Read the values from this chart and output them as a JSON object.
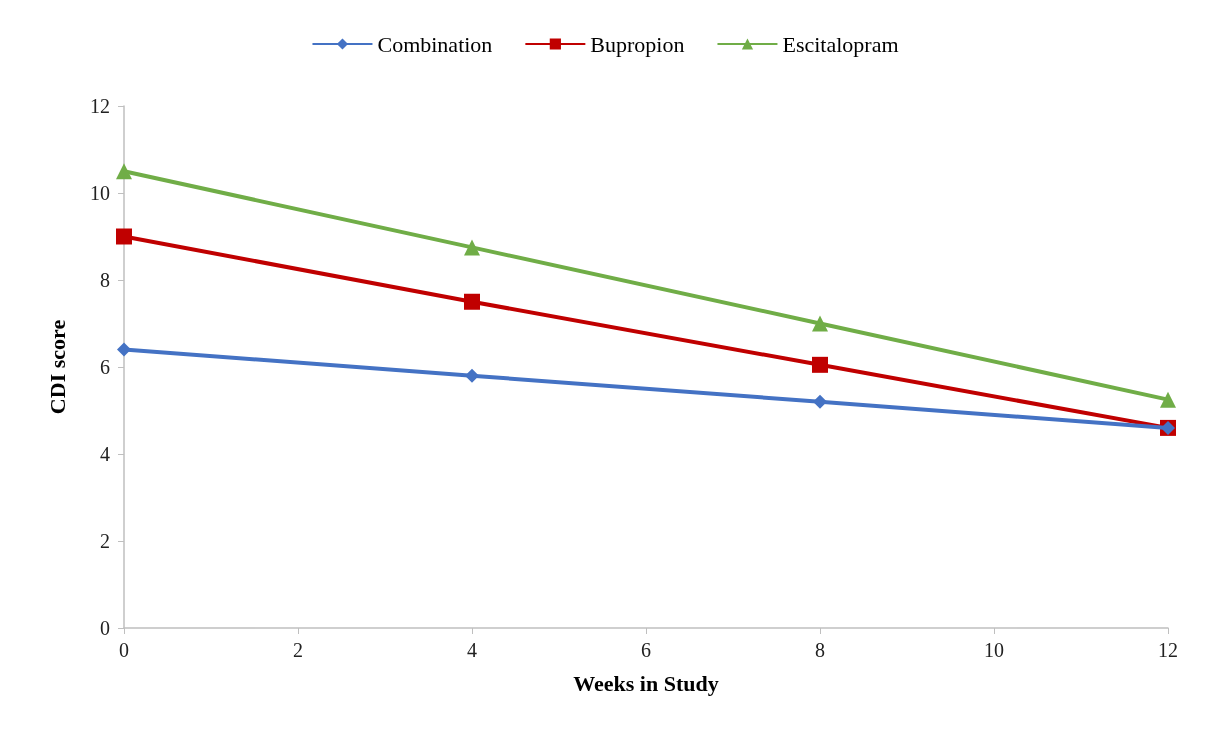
{
  "chart_data": {
    "type": "line",
    "xlabel": "Weeks in Study",
    "ylabel": "CDI score",
    "x": [
      0,
      4,
      8,
      12
    ],
    "series": [
      {
        "name": "Combination",
        "color": "#4472c4",
        "marker": "diamond",
        "values": [
          6.4,
          5.8,
          5.2,
          4.6
        ]
      },
      {
        "name": "Bupropion",
        "color": "#c00000",
        "marker": "square",
        "values": [
          9.0,
          7.5,
          6.05,
          4.6
        ]
      },
      {
        "name": "Escitalopram",
        "color": "#70ad47",
        "marker": "triangle",
        "values": [
          10.5,
          8.75,
          7.0,
          5.25
        ]
      }
    ],
    "xlim": [
      0,
      12
    ],
    "xticks": [
      0,
      2,
      4,
      6,
      8,
      10,
      12
    ],
    "ylim": [
      0,
      12
    ],
    "yticks": [
      0,
      2,
      4,
      6,
      8,
      10,
      12
    ],
    "grid": false,
    "legend": "top",
    "line_style": "solid"
  }
}
